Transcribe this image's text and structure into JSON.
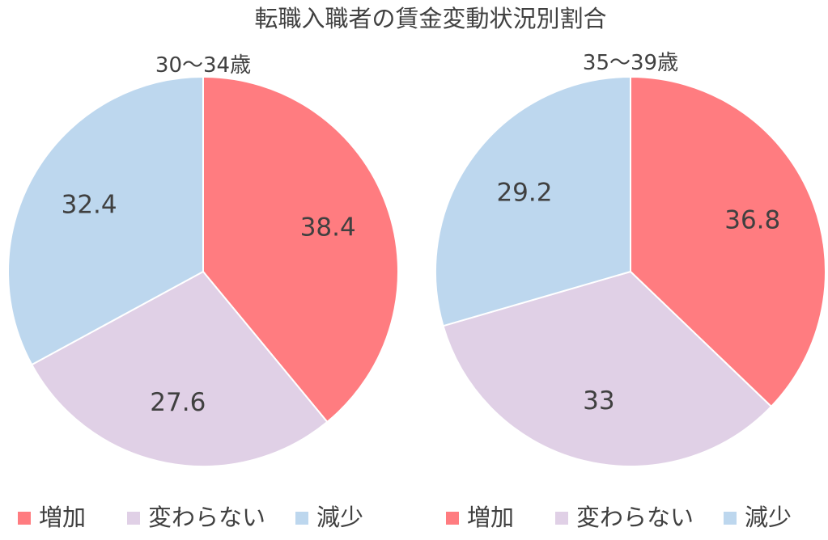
{
  "chart_data": [
    {
      "type": "pie",
      "title": "転職入職者の賃金変動状況別割合",
      "subtitle": "30～34歳",
      "categories": [
        "増加",
        "変わらない",
        "減少"
      ],
      "values": [
        38.4,
        27.6,
        32.4
      ],
      "colors": [
        "#ff7c80",
        "#e0d0e6",
        "#bdd7ee"
      ],
      "legend": "bottom"
    },
    {
      "type": "pie",
      "subtitle": "35～39歳",
      "categories": [
        "増加",
        "変わらない",
        "減少"
      ],
      "values": [
        36.8,
        33,
        29.2
      ],
      "colors": [
        "#ff7c80",
        "#e0d0e6",
        "#bdd7ee"
      ],
      "legend": "bottom"
    }
  ]
}
